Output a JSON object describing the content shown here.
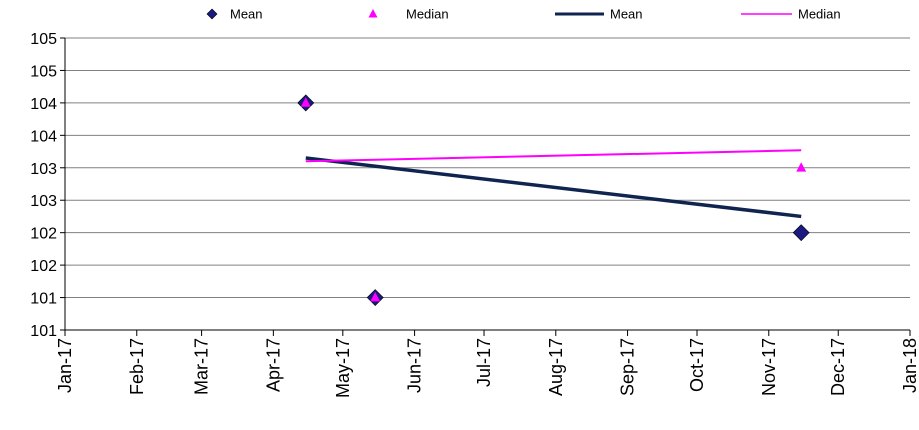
{
  "chart_data": {
    "type": "scatter",
    "title": "",
    "xlabel": "",
    "ylabel": "",
    "grid": true,
    "legend_position": "top",
    "x_tick_labels": [
      "Jan-17",
      "Feb-17",
      "Mar-17",
      "Apr-17",
      "May-17",
      "Jun-17",
      "Jul-17",
      "Aug-17",
      "Sep-17",
      "Oct-17",
      "Nov-17",
      "Dec-17",
      "Jan-18"
    ],
    "y_range": [
      100.5,
      105
    ],
    "y_tick_values": [
      100.5,
      101,
      101.5,
      102,
      102.5,
      103,
      103.5,
      104,
      104.5,
      105
    ],
    "y_tick_labels": [
      "101",
      "101",
      "102",
      "102",
      "103",
      "103",
      "104",
      "104",
      "105",
      "105"
    ],
    "x_range": [
      "2017-01-01",
      "2018-01-01"
    ],
    "series": [
      {
        "name": "Mean",
        "kind": "points",
        "marker": "diamond",
        "color": "#1a1a80",
        "points": [
          {
            "x": "2017-04-15",
            "y": 104
          },
          {
            "x": "2017-05-15",
            "y": 101
          },
          {
            "x": "2017-11-15",
            "y": 102
          }
        ]
      },
      {
        "name": "Median",
        "kind": "points",
        "marker": "triangle",
        "color": "#ff00ff",
        "points": [
          {
            "x": "2017-04-15",
            "y": 104
          },
          {
            "x": "2017-05-15",
            "y": 101
          },
          {
            "x": "2017-11-15",
            "y": 103
          }
        ]
      },
      {
        "name": "Mean",
        "kind": "trendline",
        "color": "#0f2550",
        "points": [
          {
            "x": "2017-04-15",
            "y": 103.15
          },
          {
            "x": "2017-11-15",
            "y": 102.25
          }
        ]
      },
      {
        "name": "Median",
        "kind": "trendline",
        "color": "#ff00ff",
        "points": [
          {
            "x": "2017-04-15",
            "y": 103.1
          },
          {
            "x": "2017-11-15",
            "y": 103.27
          }
        ]
      }
    ]
  }
}
